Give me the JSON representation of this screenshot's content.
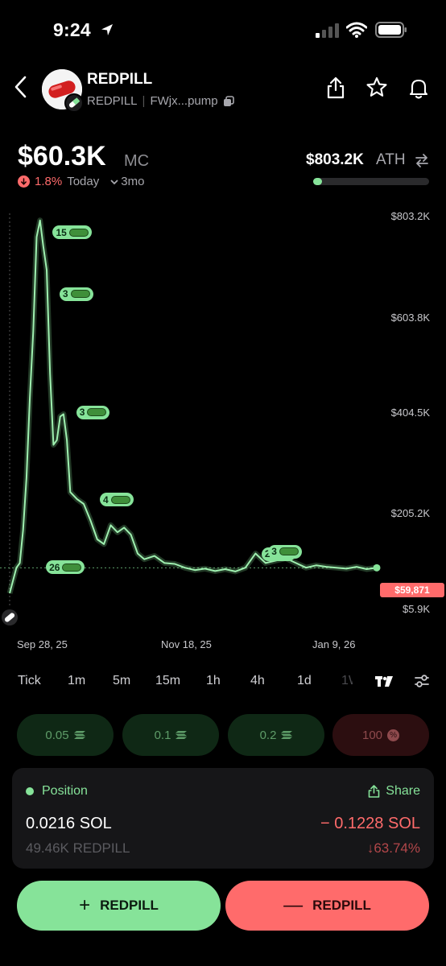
{
  "status": {
    "time": "9:24"
  },
  "header": {
    "name": "REDPILL",
    "ticker": "REDPILL",
    "address": "FWjx...pump"
  },
  "price": {
    "mc_value": "$60.3K",
    "mc_unit": "MC",
    "change_pct": "1.8%",
    "change_label": "Today",
    "range": "3mo",
    "ath_value": "$803.2K",
    "ath_label": "ATH",
    "ath_progress": 0.075
  },
  "chart_data": {
    "type": "line",
    "title": "",
    "xlabel": "",
    "ylabel": "",
    "ylim": [
      5.9,
      803.2
    ],
    "y_ticks": [
      "$803.2K",
      "$603.8K",
      "$404.5K",
      "$205.2K",
      "$5.9K"
    ],
    "x_ticks": [
      "Sep 28, 25",
      "Nov 18, 25",
      "Jan 9, 26"
    ],
    "current_price_label": "$59,871",
    "current_value": 59.871,
    "series": [
      {
        "x": [
          0,
          2,
          3,
          4,
          5,
          6,
          7,
          8,
          9,
          10,
          11,
          12,
          13,
          14,
          15,
          16,
          17,
          18,
          20,
          22,
          24,
          26,
          28,
          30,
          32,
          34,
          36,
          38,
          40,
          43,
          46,
          49,
          52,
          55,
          58,
          61,
          64,
          67,
          70,
          73,
          76,
          79,
          82,
          85,
          88,
          91,
          94,
          97,
          100,
          103,
          106,
          109
        ],
        "y": [
          5.9,
          60,
          70,
          140,
          250,
          420,
          560,
          760,
          795,
          740,
          690,
          470,
          320,
          330,
          380,
          385,
          330,
          220,
          205,
          195,
          160,
          120,
          110,
          150,
          135,
          145,
          130,
          90,
          78,
          85,
          70,
          68,
          60,
          55,
          58,
          53,
          57,
          52,
          60,
          90,
          70,
          75,
          80,
          70,
          60,
          65,
          62,
          60,
          58,
          62,
          57,
          59.9
        ]
      }
    ],
    "trade_markers": [
      {
        "count": "15",
        "x": 8,
        "y": 770
      },
      {
        "count": "3",
        "x": 10,
        "y": 640
      },
      {
        "count": "3",
        "x": 15,
        "y": 390
      },
      {
        "count": "4",
        "x": 22,
        "y": 205
      },
      {
        "count": "26",
        "x": 6,
        "y": 62
      },
      {
        "count": "2",
        "x": 70,
        "y": 90
      },
      {
        "count": "3",
        "x": 72,
        "y": 95
      }
    ]
  },
  "timeframes": [
    {
      "label": "Tick"
    },
    {
      "label": "1m"
    },
    {
      "label": "5m"
    },
    {
      "label": "15m"
    },
    {
      "label": "1h"
    },
    {
      "label": "4h"
    },
    {
      "label": "1d"
    },
    {
      "label": "1W"
    }
  ],
  "quick_buy": [
    {
      "label": "0.05"
    },
    {
      "label": "0.1"
    },
    {
      "label": "0.2"
    }
  ],
  "quick_sell": {
    "label": "100"
  },
  "position": {
    "title": "Position",
    "share_label": "Share",
    "sol_amount": "0.0216 SOL",
    "pnl_sol": "− 0.1228 SOL",
    "tokens": "49.46K REDPILL",
    "pnl_pct": "↓63.74%"
  },
  "actions": {
    "buy_label": "REDPILL",
    "sell_label": "REDPILL"
  },
  "colors": {
    "accent_green": "#86e399",
    "accent_red": "#ff6b6b",
    "background": "#000000"
  }
}
